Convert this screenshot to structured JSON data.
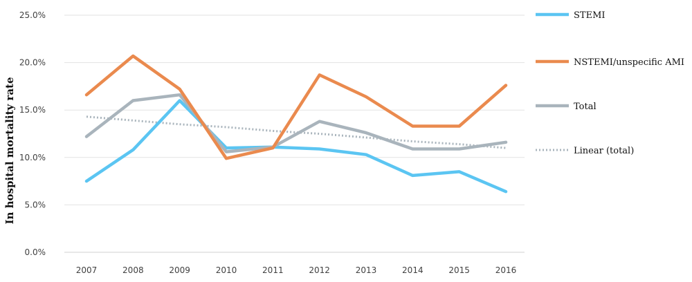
{
  "chart_data": {
    "type": "line",
    "title": "",
    "xlabel": "",
    "ylabel": "In hospital mortality rate",
    "categories": [
      "2007",
      "2008",
      "2009",
      "2010",
      "2011",
      "2012",
      "2013",
      "2014",
      "2015",
      "2016"
    ],
    "ylim": [
      0,
      25
    ],
    "yticks": [
      "0.0%",
      "5.0%",
      "10.0%",
      "15.0%",
      "20.0%",
      "25.0%"
    ],
    "ytick_values": [
      0,
      5,
      10,
      15,
      20,
      25
    ],
    "grid": true,
    "legend_position": "right",
    "series": [
      {
        "name": "STEMI",
        "color": "#5bc5f2",
        "style": "solid",
        "values": [
          7.5,
          10.8,
          16.0,
          11.0,
          11.1,
          10.9,
          10.3,
          8.1,
          8.5,
          6.4
        ]
      },
      {
        "name": "NSTEMI/unspecific AMI",
        "color": "#ea8a4e",
        "style": "solid",
        "values": [
          16.6,
          20.7,
          17.2,
          9.9,
          11.0,
          18.7,
          16.4,
          13.3,
          13.3,
          17.6
        ]
      },
      {
        "name": "Total",
        "color": "#a9b4bc",
        "style": "solid",
        "values": [
          12.2,
          16.0,
          16.6,
          10.6,
          11.1,
          13.8,
          12.6,
          10.9,
          10.9,
          11.6
        ]
      },
      {
        "name": "Linear (total)",
        "color": "#a9b4bc",
        "style": "dotted",
        "values": [
          14.3,
          13.9,
          13.5,
          13.2,
          12.8,
          12.5,
          12.1,
          11.7,
          11.4,
          11.0
        ]
      }
    ]
  }
}
